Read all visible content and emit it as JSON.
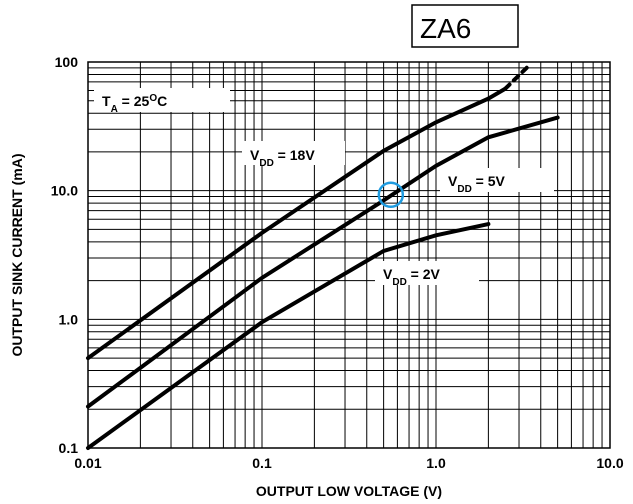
{
  "chart_data": {
    "type": "line",
    "xlabel": "OUTPUT LOW VOLTAGE (V)",
    "ylabel": "OUTPUT SINK CURRENT (mA)",
    "xscale": "log",
    "yscale": "log",
    "grid": true,
    "xlim": [
      0.01,
      10
    ],
    "ylim": [
      0.1,
      100
    ],
    "xticks": [
      0.01,
      0.1,
      {
        "value": 1,
        "label": "1.0"
      },
      {
        "value": 10,
        "label": "10.0"
      }
    ],
    "yticks": [
      0.1,
      {
        "value": 1,
        "label": "1.0"
      },
      {
        "value": 10,
        "label": "10.0"
      },
      100
    ],
    "xminor": [
      0.02,
      0.03,
      0.04,
      0.05,
      0.06,
      0.07,
      0.08,
      0.09,
      0.2,
      0.3,
      0.4,
      0.5,
      0.6,
      0.7,
      0.8,
      0.9,
      2,
      3,
      4,
      5,
      6,
      7,
      8,
      9
    ],
    "yminor": [
      0.2,
      0.3,
      0.4,
      0.5,
      0.6,
      0.7,
      0.8,
      0.9,
      2,
      3,
      4,
      5,
      6,
      7,
      8,
      9,
      20,
      30,
      40,
      50,
      60,
      70,
      80,
      90
    ],
    "annotation": [
      {
        "text": "T"
      },
      {
        "text": "A",
        "shift": "sub"
      },
      {
        "text": " = 25"
      },
      {
        "text": "O",
        "shift": "super"
      },
      {
        "text": "C"
      }
    ],
    "badge": "ZA6",
    "marker": {
      "x": 0.55,
      "y": 9.3,
      "color": "#1e9be0"
    },
    "series": [
      {
        "color": "#000000",
        "dashed_tail": true,
        "label": [
          {
            "text": "V"
          },
          {
            "text": "DD",
            "shift": "sub"
          },
          {
            "text": " = 18V"
          }
        ],
        "x": [
          0.01,
          0.1,
          0.5,
          1,
          2,
          2.5,
          3.4
        ],
        "values": [
          0.5,
          4.7,
          20.4,
          34,
          52,
          62,
          93
        ]
      },
      {
        "color": "#000000",
        "label": [
          {
            "text": "V"
          },
          {
            "text": "DD",
            "shift": "sub"
          },
          {
            "text": " = 5V"
          }
        ],
        "x": [
          0.01,
          0.1,
          0.5,
          1,
          2,
          5
        ],
        "values": [
          0.21,
          2.1,
          8.4,
          15.6,
          26,
          37
        ]
      },
      {
        "color": "#000000",
        "label": [
          {
            "text": "V"
          },
          {
            "text": "DD",
            "shift": "sub"
          },
          {
            "text": " = 2V"
          }
        ],
        "x": [
          0.01,
          0.1,
          0.5,
          1,
          2
        ],
        "values": [
          0.1,
          0.95,
          3.4,
          4.5,
          5.5
        ]
      }
    ]
  }
}
